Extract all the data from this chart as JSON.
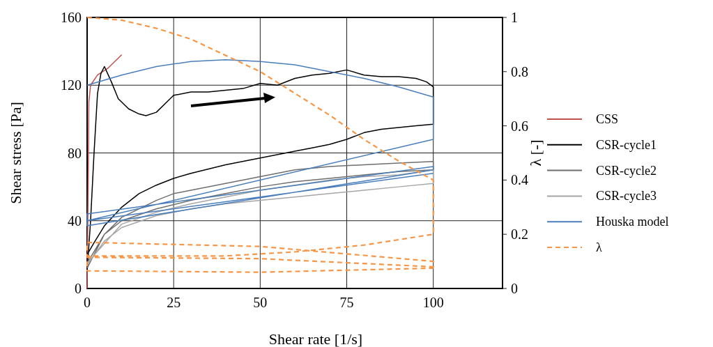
{
  "chart_data": {
    "type": "line",
    "xlabel": "Shear rate [1/s]",
    "ylabel": "Shear stress [Pa]",
    "y2label": "λ [-]",
    "xlim": [
      0,
      120
    ],
    "xticks": [
      0,
      25,
      50,
      75,
      100
    ],
    "ylim": [
      0,
      160
    ],
    "yticks": [
      0,
      40,
      80,
      120,
      160
    ],
    "y2lim": [
      0,
      1
    ],
    "y2ticks": [
      0,
      0.2,
      0.4,
      0.6,
      0.8,
      1
    ],
    "grid": true,
    "legend": "right",
    "marker": "none",
    "series": [
      {
        "name": "CSS",
        "color": "#c0504d",
        "x": [
          0,
          0.3,
          0.5,
          1,
          3,
          6,
          10
        ],
        "values": [
          0,
          60,
          110,
          120,
          126,
          130,
          138
        ]
      },
      {
        "name": "CSR-cycle1",
        "color": "#000000",
        "x": [
          0,
          1,
          2,
          3,
          4,
          5,
          7,
          9,
          12,
          15,
          17,
          20,
          23,
          25,
          30,
          35,
          40,
          45,
          50,
          55,
          60,
          65,
          70,
          75,
          80,
          85,
          90,
          95,
          98,
          100,
          100,
          95,
          90,
          85,
          80,
          75,
          70,
          65,
          60,
          50,
          40,
          30,
          25,
          20,
          15,
          10,
          5,
          2,
          0
        ],
        "values": [
          10,
          40,
          80,
          115,
          127,
          131,
          122,
          112,
          106,
          103,
          102,
          104,
          110,
          114,
          116,
          116,
          117,
          118,
          121,
          120,
          124,
          126,
          127,
          129,
          126,
          125,
          125,
          124,
          122,
          119,
          97,
          96,
          95,
          94,
          92,
          88,
          85,
          83,
          81,
          77,
          73,
          68,
          65,
          61,
          56,
          48,
          37,
          27,
          20
        ]
      },
      {
        "name": "CSR-cycle2",
        "color": "#6e6e6e",
        "x": [
          0,
          5,
          10,
          20,
          25,
          30,
          40,
          50,
          60,
          70,
          80,
          90,
          100,
          100,
          90,
          80,
          70,
          60,
          50,
          40,
          30,
          20,
          10,
          5,
          0
        ],
        "values": [
          12,
          32,
          42,
          52,
          56,
          58,
          62,
          66,
          70,
          72,
          73,
          74,
          75,
          70,
          69,
          67,
          65,
          63,
          60,
          56,
          52,
          47,
          40,
          32,
          15
        ]
      },
      {
        "name": "CSR-cycle3",
        "color": "#a6a6a6",
        "x": [
          0,
          5,
          10,
          20,
          30,
          40,
          50,
          60,
          70,
          80,
          90,
          100,
          100,
          90,
          80,
          70,
          60,
          50,
          40,
          30,
          20,
          10,
          0
        ],
        "values": [
          14,
          28,
          36,
          43,
          47,
          50,
          52,
          54,
          56,
          58,
          60,
          62,
          70,
          67,
          66,
          64,
          61,
          58,
          54,
          50,
          45,
          38,
          15
        ]
      },
      {
        "name": "Houska model",
        "color": "#4a7ebb",
        "x": [
          0,
          10,
          20,
          30,
          40,
          50,
          60,
          70,
          80,
          90,
          100,
          100,
          0,
          0,
          100,
          100,
          0,
          0,
          100
        ],
        "values": [
          120,
          126,
          131,
          134,
          135,
          134,
          132,
          128,
          124,
          119,
          113,
          88,
          40,
          44,
          72,
          70,
          37,
          40,
          68
        ]
      },
      {
        "name": "λ",
        "color": "#f79646",
        "axis": "y2",
        "line_style": "dashed",
        "x": [
          0,
          10,
          20,
          30,
          40,
          50,
          60,
          70,
          80,
          90,
          100,
          100,
          80,
          60,
          40,
          20,
          0,
          0,
          50,
          100,
          100,
          50,
          0,
          0,
          50,
          100
        ],
        "values": [
          1,
          0.99,
          0.96,
          0.92,
          0.86,
          0.8,
          0.72,
          0.64,
          0.55,
          0.47,
          0.4,
          0.2,
          0.16,
          0.135,
          0.12,
          0.12,
          0.12,
          0.17,
          0.155,
          0.1,
          0.08,
          0.11,
          0.115,
          0.065,
          0.06,
          0.075
        ]
      }
    ]
  }
}
